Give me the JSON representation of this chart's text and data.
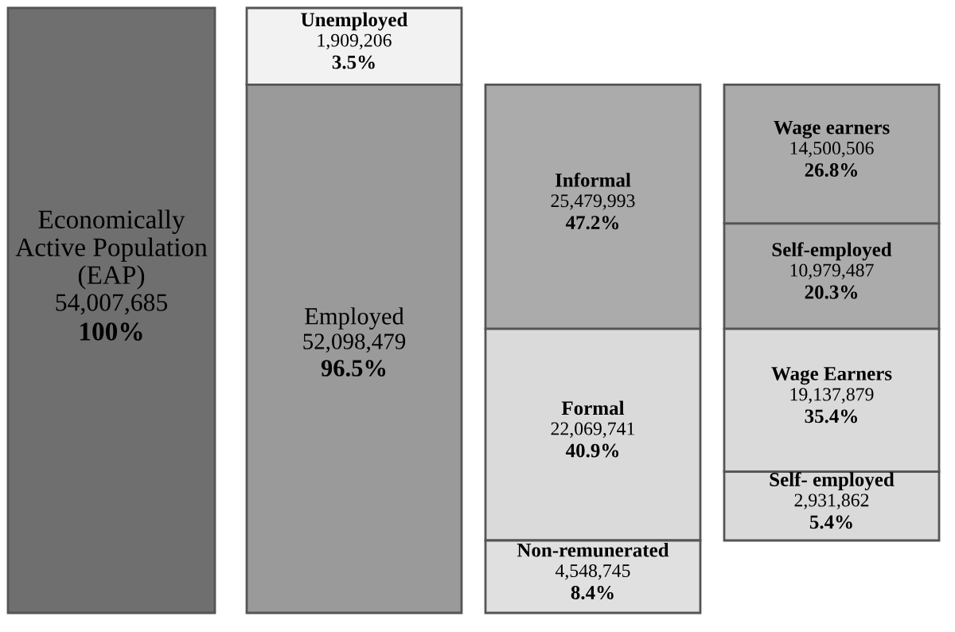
{
  "chart_data": {
    "type": "other",
    "categories": [
      "Economically\nActive Population\n(EAP)",
      "Unemployed",
      "Employed",
      "Informal",
      "Formal",
      "Non-remunerated",
      "Wage earners",
      "Self-employed",
      "Wage Earners",
      "Self- employed"
    ],
    "series": [
      {
        "values": [
          54007685,
          1909206,
          52098479,
          25479993,
          22069741,
          4548745,
          14500506,
          10979487,
          19137879,
          2931862
        ],
        "value_labels": [
          "54,007,685",
          "1,909,206",
          "52,098,479",
          "25,479,993",
          "22,069,741",
          "4,548,745",
          "14,500,506",
          "10,979,487",
          "19,137,879",
          "2,931,862"
        ],
        "colors": [
          "#6f6f6f",
          "#f2f2f2",
          "#9a9a9a",
          "#ababab",
          "#dadada",
          "#e0e0e0",
          "#ababab",
          "#ababab",
          "#dadada",
          "#dadada"
        ]
      },
      {
        "values": [
          100,
          3.5,
          96.5,
          47.2,
          40.9,
          8.4,
          26.8,
          20.3,
          35.4,
          5.4
        ],
        "value_labels": [
          "100%",
          "3.5%",
          "96.5%",
          "47.2%",
          "40.9%",
          "8.4%",
          "26.8%",
          "20.3%",
          "35.4%",
          "5.4%"
        ]
      }
    ]
  }
}
